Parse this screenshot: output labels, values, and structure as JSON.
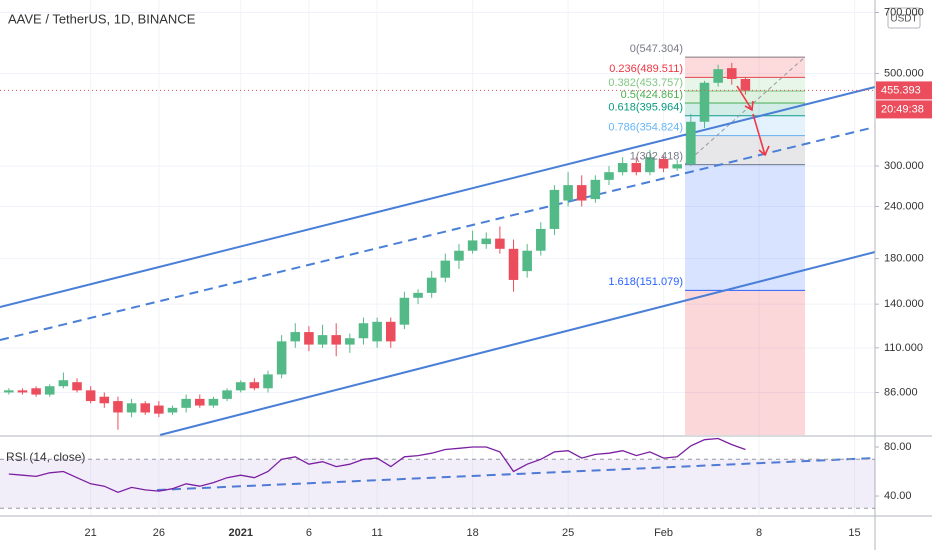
{
  "chart_data": [
    {
      "type": "candlestick",
      "title": "AAVE / TetherUS, 1D, BINANCE",
      "currency": "USDT",
      "countdown": "20:49:38",
      "log_scale": true,
      "grid": true,
      "up_color": "#53b987",
      "down_color": "#eb4d5c",
      "categories": [
        null,
        null,
        null,
        null,
        null,
        null,
        "21",
        null,
        null,
        null,
        null,
        "26",
        null,
        null,
        null,
        null,
        null,
        "2021",
        null,
        null,
        null,
        null,
        "6",
        null,
        null,
        null,
        null,
        "11",
        null,
        null,
        null,
        null,
        null,
        null,
        "18",
        null,
        null,
        null,
        null,
        null,
        null,
        "25",
        null,
        null,
        null,
        null,
        null,
        null,
        "Feb",
        null,
        null,
        null,
        null,
        null,
        null,
        "8",
        null,
        null,
        null,
        null,
        null,
        null,
        "15",
        null
      ],
      "open": [
        86,
        87,
        88,
        85,
        89,
        91,
        87,
        84,
        82,
        77,
        81,
        80,
        77,
        79,
        83,
        80,
        83,
        87,
        91,
        88,
        95,
        114,
        120,
        112,
        118,
        112,
        116,
        114,
        127,
        125,
        145,
        149,
        162,
        178,
        188,
        195,
        201,
        190,
        168,
        188,
        212,
        248,
        270,
        250,
        278,
        290,
        305,
        290,
        312,
        296,
        303,
        383,
        475,
        515,
        485,
        null,
        null,
        null,
        null,
        null,
        null,
        null,
        null,
        null
      ],
      "high": [
        88,
        88,
        89,
        90,
        96,
        93,
        89,
        86,
        84,
        83,
        82,
        82,
        80,
        85,
        85,
        84,
        88,
        92,
        93,
        97,
        118,
        126,
        124,
        125,
        126,
        119,
        130,
        130,
        130,
        150,
        152,
        168,
        185,
        195,
        210,
        208,
        215,
        200,
        195,
        220,
        270,
        290,
        285,
        285,
        300,
        315,
        315,
        328,
        318,
        310,
        400,
        480,
        525,
        530,
        490,
        null,
        null,
        null,
        null,
        null,
        null,
        null,
        null,
        null
      ],
      "low": [
        85,
        85,
        84,
        84,
        88,
        86,
        81,
        79,
        70,
        75,
        76,
        75,
        76,
        77,
        79,
        79,
        82,
        86,
        87,
        86,
        93,
        110,
        108,
        110,
        105,
        107,
        112,
        110,
        110,
        122,
        140,
        145,
        158,
        170,
        185,
        190,
        185,
        150,
        162,
        183,
        205,
        240,
        240,
        245,
        270,
        285,
        285,
        285,
        290,
        292,
        300,
        370,
        465,
        470,
        445,
        null,
        null,
        null,
        null,
        null,
        null,
        null,
        null,
        null
      ],
      "close": [
        87,
        86,
        85,
        89,
        92,
        87,
        82,
        81,
        77,
        81,
        77,
        76.5,
        79,
        83,
        80,
        83,
        87,
        91,
        88,
        95,
        114,
        120,
        112,
        118,
        112,
        116,
        126,
        127,
        114,
        145,
        149,
        162,
        178,
        188,
        199,
        201,
        190,
        160,
        188,
        212,
        263,
        270,
        248,
        278,
        290,
        305,
        290,
        315,
        296,
        303,
        383,
        475,
        512,
        485,
        455.393,
        null,
        null,
        null,
        null,
        null,
        null,
        null,
        null,
        null
      ],
      "ylim": [
        68,
        750
      ],
      "yticks": [
        {
          "value": 86,
          "label": "86.000"
        },
        {
          "value": 110,
          "label": "110.000"
        },
        {
          "value": 140,
          "label": "140.000"
        },
        {
          "value": 180,
          "label": "180.000"
        },
        {
          "value": 240,
          "label": "240.000"
        },
        {
          "value": 300,
          "label": "300.000"
        },
        {
          "value": 500,
          "label": "500.000"
        },
        {
          "value": 700,
          "label": "700.000"
        }
      ],
      "fib": [
        {
          "label": "0(547.304)",
          "value": 547.304,
          "color": "#787b86"
        },
        {
          "label": "0.236(489.511)",
          "value": 489.511,
          "color": "#f23645"
        },
        {
          "label": "0.382(453.757)",
          "value": 453.757,
          "color": "#81c784"
        },
        {
          "label": "0.5(424.861)",
          "value": 424.861,
          "color": "#4caf50"
        },
        {
          "label": "0.618(395.964)",
          "value": 395.964,
          "color": "#089981"
        },
        {
          "label": "0.786(354.824)",
          "value": 354.824,
          "color": "#64b5f6"
        },
        {
          "label": "1(302.418)",
          "value": 302.418,
          "color": "#787b86"
        },
        {
          "label": "1.618(151.079)",
          "value": 151.079,
          "color": "#2962ff"
        }
      ]
    },
    {
      "type": "line",
      "title": "RSI (14, close)",
      "color": "#7b1fa2",
      "values": [
        58,
        57,
        56,
        59,
        60,
        55,
        50,
        48,
        43,
        47,
        45,
        44,
        46,
        50,
        48,
        51,
        55,
        57,
        55,
        60,
        70,
        72,
        66,
        68,
        64,
        66,
        70,
        71,
        64,
        72,
        73,
        75,
        78,
        79,
        80,
        80,
        76,
        60,
        66,
        70,
        76,
        77,
        71,
        74,
        75,
        77,
        73,
        76,
        71,
        72,
        81,
        86,
        87,
        82,
        78,
        null,
        null,
        null,
        null,
        null,
        null,
        null,
        null,
        null
      ],
      "ylim": [
        24.5,
        88.2
      ],
      "band": [
        30,
        70
      ],
      "yticks": [
        {
          "value": 40,
          "label": "40.00"
        },
        {
          "value": 80,
          "label": "80.00"
        }
      ]
    }
  ]
}
